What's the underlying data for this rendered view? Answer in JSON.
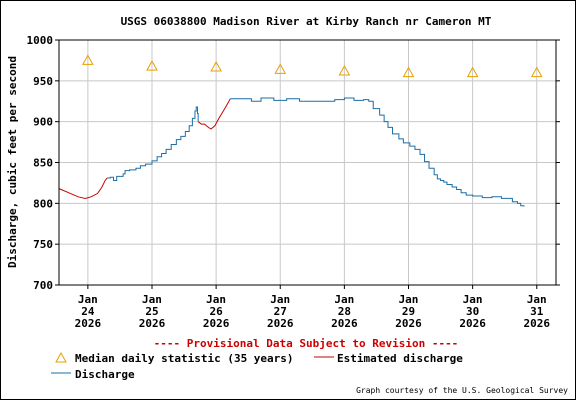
{
  "chart_data": {
    "type": "line",
    "title": "USGS 06038800 Madison River at Kirby Ranch nr Cameron MT",
    "ylabel": "Discharge, cubic feet per second",
    "ylim": [
      700,
      1000
    ],
    "yticks": [
      700,
      750,
      800,
      850,
      900,
      950,
      1000
    ],
    "grid": true,
    "x_ticks": [
      {
        "day": 24,
        "lines": [
          "Jan",
          "24",
          "2026"
        ]
      },
      {
        "day": 25,
        "lines": [
          "Jan",
          "25",
          "2026"
        ]
      },
      {
        "day": 26,
        "lines": [
          "Jan",
          "26",
          "2026"
        ]
      },
      {
        "day": 27,
        "lines": [
          "Jan",
          "27",
          "2026"
        ]
      },
      {
        "day": 28,
        "lines": [
          "Jan",
          "28",
          "2026"
        ]
      },
      {
        "day": 29,
        "lines": [
          "Jan",
          "29",
          "2026"
        ]
      },
      {
        "day": 30,
        "lines": [
          "Jan",
          "30",
          "2026"
        ]
      },
      {
        "day": 31,
        "lines": [
          "Jan",
          "31",
          "2026"
        ]
      }
    ],
    "xlim": [
      23.55,
      31.3
    ],
    "annotation": "---- Provisional Data Subject to Revision ----",
    "series": [
      {
        "name": "Median daily statistic (35 years)",
        "kind": "triangle",
        "color": "#e8a000",
        "points": [
          [
            24,
            975
          ],
          [
            25,
            968
          ],
          [
            26,
            967
          ],
          [
            27,
            964
          ],
          [
            28,
            962
          ],
          [
            29,
            960
          ],
          [
            30,
            960
          ],
          [
            31,
            960
          ]
        ]
      },
      {
        "name": "Estimated discharge",
        "kind": "line",
        "color": "#cc0000",
        "segments": [
          [
            [
              23.55,
              818
            ],
            [
              23.7,
              813
            ],
            [
              23.85,
              808
            ],
            [
              23.96,
              806
            ],
            [
              24.05,
              808
            ],
            [
              24.15,
              812
            ],
            [
              24.22,
              820
            ],
            [
              24.27,
              828
            ],
            [
              24.3,
              831
            ]
          ],
          [
            [
              25.72,
              900
            ],
            [
              25.77,
              897
            ],
            [
              25.82,
              897
            ],
            [
              25.88,
              893
            ],
            [
              25.92,
              891
            ],
            [
              25.98,
              895
            ],
            [
              26.05,
              905
            ],
            [
              26.15,
              918
            ],
            [
              26.2,
              925
            ],
            [
              26.22,
              928
            ]
          ]
        ]
      },
      {
        "name": "Discharge",
        "kind": "line",
        "color": "#1a6fa8",
        "segments": [
          [
            [
              24.3,
              831
            ],
            [
              24.35,
              832
            ],
            [
              24.4,
              828
            ],
            [
              24.45,
              833
            ],
            [
              24.55,
              836
            ],
            [
              24.58,
              840
            ],
            [
              24.65,
              841
            ],
            [
              24.75,
              843
            ],
            [
              24.82,
              846
            ],
            [
              24.9,
              848
            ],
            [
              25.0,
              852
            ],
            [
              25.08,
              857
            ],
            [
              25.15,
              861
            ],
            [
              25.22,
              866
            ],
            [
              25.3,
              872
            ],
            [
              25.38,
              878
            ],
            [
              25.45,
              882
            ],
            [
              25.52,
              888
            ],
            [
              25.58,
              895
            ],
            [
              25.63,
              904
            ],
            [
              25.67,
              913
            ],
            [
              25.69,
              918
            ],
            [
              25.71,
              910
            ],
            [
              25.72,
              900
            ]
          ],
          [
            [
              26.22,
              928
            ],
            [
              26.4,
              928
            ],
            [
              26.55,
              925
            ],
            [
              26.7,
              929
            ],
            [
              26.9,
              926
            ],
            [
              27.1,
              928
            ],
            [
              27.3,
              925
            ],
            [
              27.5,
              925
            ],
            [
              27.7,
              925
            ],
            [
              27.85,
              927
            ],
            [
              28.0,
              929
            ],
            [
              28.15,
              926
            ],
            [
              28.3,
              927
            ],
            [
              28.38,
              925
            ],
            [
              28.45,
              916
            ],
            [
              28.55,
              908
            ],
            [
              28.62,
              900
            ],
            [
              28.68,
              893
            ],
            [
              28.75,
              885
            ],
            [
              28.85,
              879
            ],
            [
              28.92,
              874
            ],
            [
              29.02,
              870
            ],
            [
              29.1,
              866
            ],
            [
              29.18,
              860
            ],
            [
              29.25,
              851
            ],
            [
              29.32,
              843
            ],
            [
              29.4,
              835
            ],
            [
              29.45,
              830
            ],
            [
              29.5,
              828
            ],
            [
              29.55,
              826
            ],
            [
              29.6,
              823
            ],
            [
              29.68,
              820
            ],
            [
              29.75,
              817
            ],
            [
              29.82,
              813
            ],
            [
              29.9,
              810
            ],
            [
              30.0,
              809
            ],
            [
              30.15,
              807
            ],
            [
              30.3,
              808
            ],
            [
              30.45,
              806
            ],
            [
              30.55,
              806
            ],
            [
              30.62,
              802
            ],
            [
              30.7,
              800
            ],
            [
              30.75,
              797
            ],
            [
              30.8,
              796
            ]
          ]
        ]
      }
    ],
    "legend": {
      "median": "Median daily statistic (35 years)",
      "estimated": "Estimated discharge",
      "discharge": "Discharge"
    },
    "credit": "Graph courtesy of the U.S. Geological Survey"
  }
}
